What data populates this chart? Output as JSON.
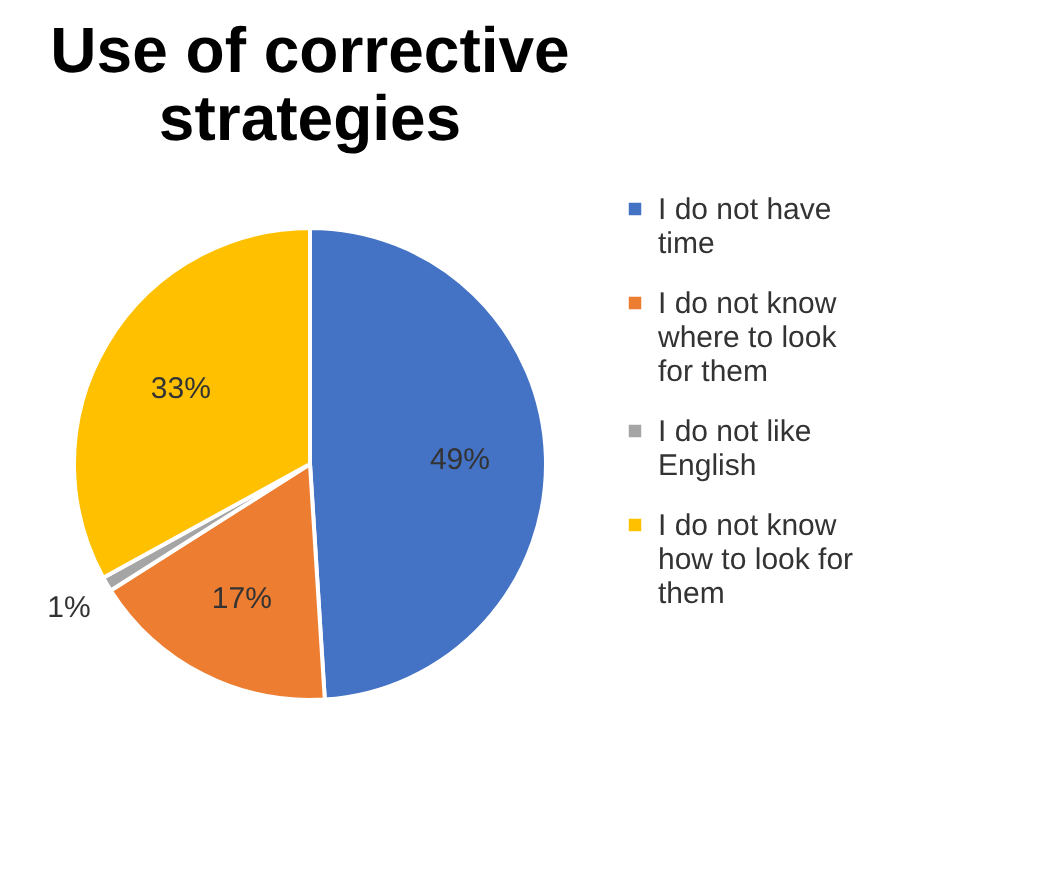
{
  "chart_data": {
    "type": "pie",
    "title": "Use of corrective strategies",
    "categories": [
      "I do not have time",
      "I do not know where to look for them",
      "I do not like English",
      "I do not know how to look for them"
    ],
    "values": [
      49,
      17,
      1,
      33
    ],
    "colors": [
      "#4472c4",
      "#ed7d31",
      "#a5a5a5",
      "#ffc000"
    ],
    "value_labels": [
      "49%",
      "17%",
      "1%",
      "33%"
    ],
    "legend": "right"
  }
}
